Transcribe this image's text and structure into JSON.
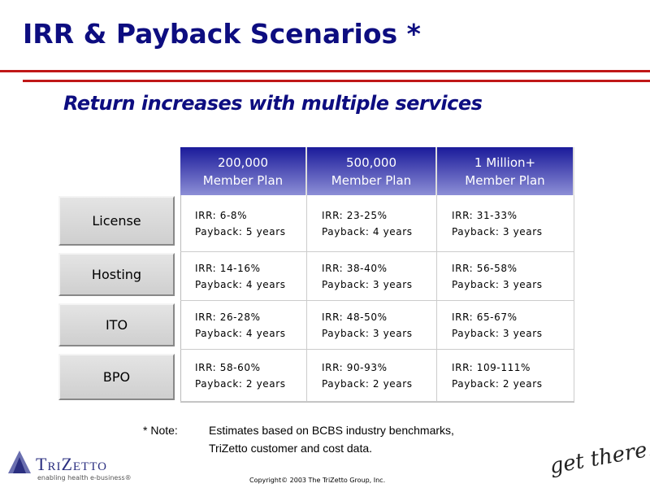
{
  "title": "IRR & Payback Scenarios *",
  "subtitle": "Return increases with multiple services",
  "table": {
    "columns": [
      [
        "200,000",
        "Member Plan"
      ],
      [
        "500,000",
        "Member Plan"
      ],
      [
        "1 Million+",
        "Member Plan"
      ]
    ],
    "rows": [
      {
        "label": "License",
        "cells": [
          [
            "IRR: 6-8%",
            "Payback: 5 years"
          ],
          [
            "IRR: 23-25%",
            "Payback: 4 years"
          ],
          [
            "IRR: 31-33%",
            "Payback: 3 years"
          ]
        ]
      },
      {
        "label": "Hosting",
        "cells": [
          [
            "IRR: 14-16%",
            "Payback: 4 years"
          ],
          [
            "IRR: 38-40%",
            "Payback: 3 years"
          ],
          [
            "IRR: 56-58%",
            "Payback: 3 years"
          ]
        ]
      },
      {
        "label": "ITO",
        "cells": [
          [
            "IRR: 26-28%",
            "Payback: 4 years"
          ],
          [
            "IRR: 48-50%",
            "Payback: 3 years"
          ],
          [
            "IRR: 65-67%",
            "Payback: 3 years"
          ]
        ]
      },
      {
        "label": "BPO",
        "cells": [
          [
            "IRR: 58-60%",
            "Payback: 2 years"
          ],
          [
            "IRR: 90-93%",
            "Payback: 2 years"
          ],
          [
            "IRR: 109-111%",
            "Payback: 2 years"
          ]
        ]
      }
    ]
  },
  "note": {
    "label": "* Note:",
    "lines": [
      "Estimates based on BCBS industry benchmarks,",
      "TriZetto customer and cost data."
    ]
  },
  "logo": {
    "name": "TriZetto",
    "tagline": "enabling health e-business®"
  },
  "copyright": "Copyright© 2003 The TriZetto Group, Inc.",
  "signature": "get there."
}
